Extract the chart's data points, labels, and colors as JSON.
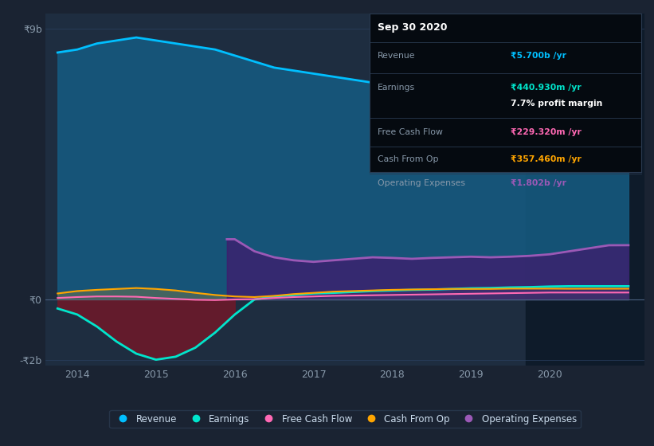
{
  "bg_color": "#1a2332",
  "plot_bg_color": "#1e2d40",
  "y_label_top": "₹9b",
  "y_label_zero": "₹0",
  "y_label_bottom": "-₹2b",
  "x_ticks": [
    2014,
    2015,
    2016,
    2017,
    2018,
    2019,
    2020
  ],
  "x_min": 2013.6,
  "x_max": 2021.2,
  "y_min": -2200000000.0,
  "y_max": 9500000000.0,
  "highlight_start": 2019.7,
  "highlight_end": 2021.2,
  "info_box": {
    "date": "Sep 30 2020",
    "revenue_label": "Revenue",
    "revenue_value": "₹5.700b /yr",
    "revenue_color": "#00bfff",
    "earnings_label": "Earnings",
    "earnings_value": "₹440.930m /yr",
    "earnings_color": "#00e5cc",
    "profit_margin": "7.7% profit margin",
    "profit_color": "#ffffff",
    "fcf_label": "Free Cash Flow",
    "fcf_value": "₹229.320m /yr",
    "fcf_color": "#ff69b4",
    "cashop_label": "Cash From Op",
    "cashop_value": "₹357.460m /yr",
    "cashop_color": "#ffa500",
    "opex_label": "Operating Expenses",
    "opex_value": "₹1.802b /yr",
    "opex_color": "#9b59b6"
  },
  "legend": [
    {
      "label": "Revenue",
      "color": "#00bfff"
    },
    {
      "label": "Earnings",
      "color": "#00e5cc"
    },
    {
      "label": "Free Cash Flow",
      "color": "#ff69b4"
    },
    {
      "label": "Cash From Op",
      "color": "#ffa500"
    },
    {
      "label": "Operating Expenses",
      "color": "#9b59b6"
    }
  ],
  "revenue": {
    "x": [
      2013.75,
      2014.0,
      2014.25,
      2014.5,
      2014.75,
      2015.0,
      2015.25,
      2015.5,
      2015.75,
      2016.0,
      2016.25,
      2016.5,
      2016.75,
      2017.0,
      2017.25,
      2017.5,
      2017.75,
      2018.0,
      2018.25,
      2018.5,
      2018.75,
      2019.0,
      2019.25,
      2019.5,
      2019.75,
      2020.0,
      2020.25,
      2020.5,
      2020.75,
      2021.0
    ],
    "y": [
      8200000000.0,
      8300000000.0,
      8500000000.0,
      8600000000.0,
      8700000000.0,
      8600000000.0,
      8500000000.0,
      8400000000.0,
      8300000000.0,
      8100000000.0,
      7900000000.0,
      7700000000.0,
      7600000000.0,
      7500000000.0,
      7400000000.0,
      7300000000.0,
      7200000000.0,
      7100000000.0,
      7000000000.0,
      6900000000.0,
      6800000000.0,
      6700000000.0,
      6600000000.0,
      6500000000.0,
      6300000000.0,
      6200000000.0,
      5900000000.0,
      5800000000.0,
      5750000000.0,
      5700000000.0
    ],
    "color": "#00bfff",
    "fill_color": "#155a80",
    "linewidth": 2.0
  },
  "earnings": {
    "x": [
      2013.75,
      2014.0,
      2014.25,
      2014.5,
      2014.75,
      2015.0,
      2015.25,
      2015.5,
      2015.75,
      2016.0,
      2016.25,
      2016.5,
      2016.75,
      2017.0,
      2017.25,
      2017.5,
      2017.75,
      2018.0,
      2018.25,
      2018.5,
      2018.75,
      2019.0,
      2019.25,
      2019.5,
      2019.75,
      2020.0,
      2020.25,
      2020.5,
      2020.75,
      2021.0
    ],
    "y": [
      -300000000.0,
      -500000000.0,
      -900000000.0,
      -1400000000.0,
      -1800000000.0,
      -2000000000.0,
      -1900000000.0,
      -1600000000.0,
      -1100000000.0,
      -500000000.0,
      0.0,
      100000000.0,
      150000000.0,
      200000000.0,
      220000000.0,
      250000000.0,
      280000000.0,
      300000000.0,
      320000000.0,
      330000000.0,
      350000000.0,
      370000000.0,
      380000000.0,
      400000000.0,
      410000000.0,
      430000000.0,
      440000000.0,
      440000000.0,
      440000000.0,
      440000000.0
    ],
    "color": "#00e5cc",
    "linewidth": 2.0
  },
  "free_cash_flow": {
    "x": [
      2013.75,
      2014.0,
      2014.25,
      2014.5,
      2014.75,
      2015.0,
      2015.25,
      2015.5,
      2015.75,
      2016.0,
      2016.25,
      2016.5,
      2016.75,
      2017.0,
      2017.25,
      2017.5,
      2017.75,
      2018.0,
      2018.25,
      2018.5,
      2018.75,
      2019.0,
      2019.25,
      2019.5,
      2019.75,
      2020.0,
      2020.25,
      2020.5,
      2020.75,
      2021.0
    ],
    "y": [
      50000000.0,
      80000000.0,
      100000000.0,
      100000000.0,
      90000000.0,
      50000000.0,
      20000000.0,
      -10000000.0,
      -20000000.0,
      0.0,
      10000000.0,
      50000000.0,
      80000000.0,
      100000000.0,
      120000000.0,
      130000000.0,
      140000000.0,
      150000000.0,
      160000000.0,
      170000000.0,
      180000000.0,
      190000000.0,
      200000000.0,
      210000000.0,
      220000000.0,
      230000000.0,
      230000000.0,
      230000000.0,
      230000000.0,
      230000000.0
    ],
    "color": "#ff69b4",
    "linewidth": 1.5
  },
  "cash_from_op": {
    "x": [
      2013.75,
      2014.0,
      2014.25,
      2014.5,
      2014.75,
      2015.0,
      2015.25,
      2015.5,
      2015.75,
      2016.0,
      2016.25,
      2016.5,
      2016.75,
      2017.0,
      2017.25,
      2017.5,
      2017.75,
      2018.0,
      2018.25,
      2018.5,
      2018.75,
      2019.0,
      2019.25,
      2019.5,
      2019.75,
      2020.0,
      2020.25,
      2020.5,
      2020.75,
      2021.0
    ],
    "y": [
      200000000.0,
      280000000.0,
      320000000.0,
      350000000.0,
      380000000.0,
      350000000.0,
      300000000.0,
      220000000.0,
      150000000.0,
      100000000.0,
      80000000.0,
      120000000.0,
      180000000.0,
      220000000.0,
      260000000.0,
      280000000.0,
      300000000.0,
      320000000.0,
      330000000.0,
      340000000.0,
      350000000.0,
      350000000.0,
      350000000.0,
      360000000.0,
      360000000.0,
      360000000.0,
      356000000.0,
      357000000.0,
      357000000.0,
      357000000.0
    ],
    "color": "#ffa500",
    "linewidth": 1.5
  },
  "op_expenses": {
    "x": [
      2015.9,
      2016.0,
      2016.25,
      2016.5,
      2016.75,
      2017.0,
      2017.25,
      2017.5,
      2017.75,
      2018.0,
      2018.25,
      2018.5,
      2018.75,
      2019.0,
      2019.25,
      2019.5,
      2019.75,
      2020.0,
      2020.25,
      2020.5,
      2020.75,
      2021.0
    ],
    "y": [
      2000000000.0,
      2000000000.0,
      1600000000.0,
      1400000000.0,
      1300000000.0,
      1250000000.0,
      1300000000.0,
      1350000000.0,
      1400000000.0,
      1380000000.0,
      1350000000.0,
      1380000000.0,
      1400000000.0,
      1420000000.0,
      1400000000.0,
      1420000000.0,
      1450000000.0,
      1500000000.0,
      1600000000.0,
      1700000000.0,
      1800000000.0,
      1802000000.0
    ],
    "color": "#9b59b6",
    "fill_color": "#3d1f6e",
    "linewidth": 2.0
  }
}
